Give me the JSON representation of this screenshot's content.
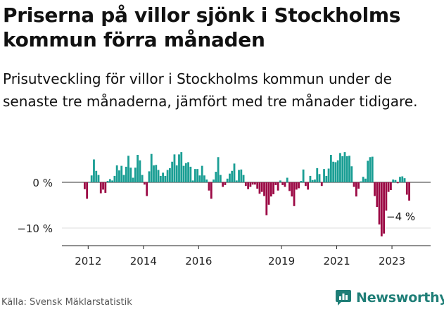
{
  "title": "Priserna på villor sjönk i Stockholms kommun förra månaden",
  "subtitle": "Prisutveckling för villor i Stockholms kommun under de senaste tre månaderna, jämfört med tre månader tidigare.",
  "source": "Källa: Svensk Mäklarstatistik",
  "brand": {
    "name": "Newsworthy",
    "logo_icon": "newsworthy-logo-icon"
  },
  "colors": {
    "positive": "#1a9e94",
    "negative": "#9c0a45",
    "axis": "#222222",
    "grid": "#dddddd"
  },
  "chart_data": {
    "type": "bar",
    "title": "",
    "xlabel": "",
    "ylabel": "",
    "ylim": [
      -14,
      7
    ],
    "y_ticks": [
      {
        "value": 0,
        "label": "0 %"
      },
      {
        "value": -10,
        "label": "−10 %"
      }
    ],
    "x_range": [
      2011.05,
      2024.4
    ],
    "x_ticks": [
      {
        "value": 2012,
        "label": "2012"
      },
      {
        "value": 2014,
        "label": "2014"
      },
      {
        "value": 2016,
        "label": "2016"
      },
      {
        "value": 2019,
        "label": "2019"
      },
      {
        "value": 2021,
        "label": "2021"
      },
      {
        "value": 2023,
        "label": "2023"
      }
    ],
    "start": {
      "year": 2011,
      "month": 11
    },
    "last_value_label": "−4 %",
    "values": [
      -1.5,
      -3.6,
      0.0,
      1.5,
      5.0,
      2.5,
      1.6,
      -2.4,
      -1.6,
      -2.3,
      0.3,
      0.7,
      0.4,
      1.4,
      3.7,
      2.6,
      3.6,
      1.6,
      3.4,
      5.8,
      3.2,
      1.0,
      3.2,
      6.0,
      4.8,
      1.6,
      -0.5,
      -3.0,
      2.4,
      6.2,
      3.7,
      3.8,
      2.7,
      1.4,
      2.1,
      1.4,
      2.7,
      3.1,
      4.5,
      6.1,
      3.7,
      6.1,
      6.6,
      3.6,
      4.2,
      4.4,
      3.4,
      0.4,
      2.9,
      2.9,
      1.5,
      3.6,
      1.5,
      0.6,
      -1.8,
      -3.6,
      0.6,
      2.3,
      5.5,
      1.6,
      -1.0,
      -0.6,
      0.8,
      1.9,
      2.5,
      4.1,
      0.4,
      2.7,
      2.8,
      1.6,
      -0.8,
      -1.5,
      -1.0,
      -0.5,
      -0.5,
      -1.4,
      -2.5,
      -2.1,
      -3.0,
      -7.2,
      -4.9,
      -3.1,
      -2.6,
      -0.6,
      -1.8,
      0.4,
      -0.6,
      -1.0,
      1.0,
      -1.9,
      -3.1,
      -5.2,
      -1.6,
      -1.3,
      0.3,
      2.8,
      -0.8,
      -1.6,
      1.4,
      0.5,
      0.6,
      3.1,
      1.8,
      -0.8,
      2.9,
      1.4,
      3.0,
      6.0,
      4.5,
      4.4,
      4.8,
      6.4,
      5.7,
      6.6,
      5.7,
      5.8,
      3.5,
      -1.0,
      -3.1,
      -1.4,
      0.2,
      1.2,
      0.8,
      4.7,
      5.5,
      5.6,
      -3.0,
      -5.4,
      -9.2,
      -11.8,
      -11.2,
      -6.2,
      -2.1,
      -1.7,
      0.6,
      0.5,
      -0.2,
      1.2,
      1.3,
      0.9,
      -2.7,
      -4.0
    ]
  }
}
